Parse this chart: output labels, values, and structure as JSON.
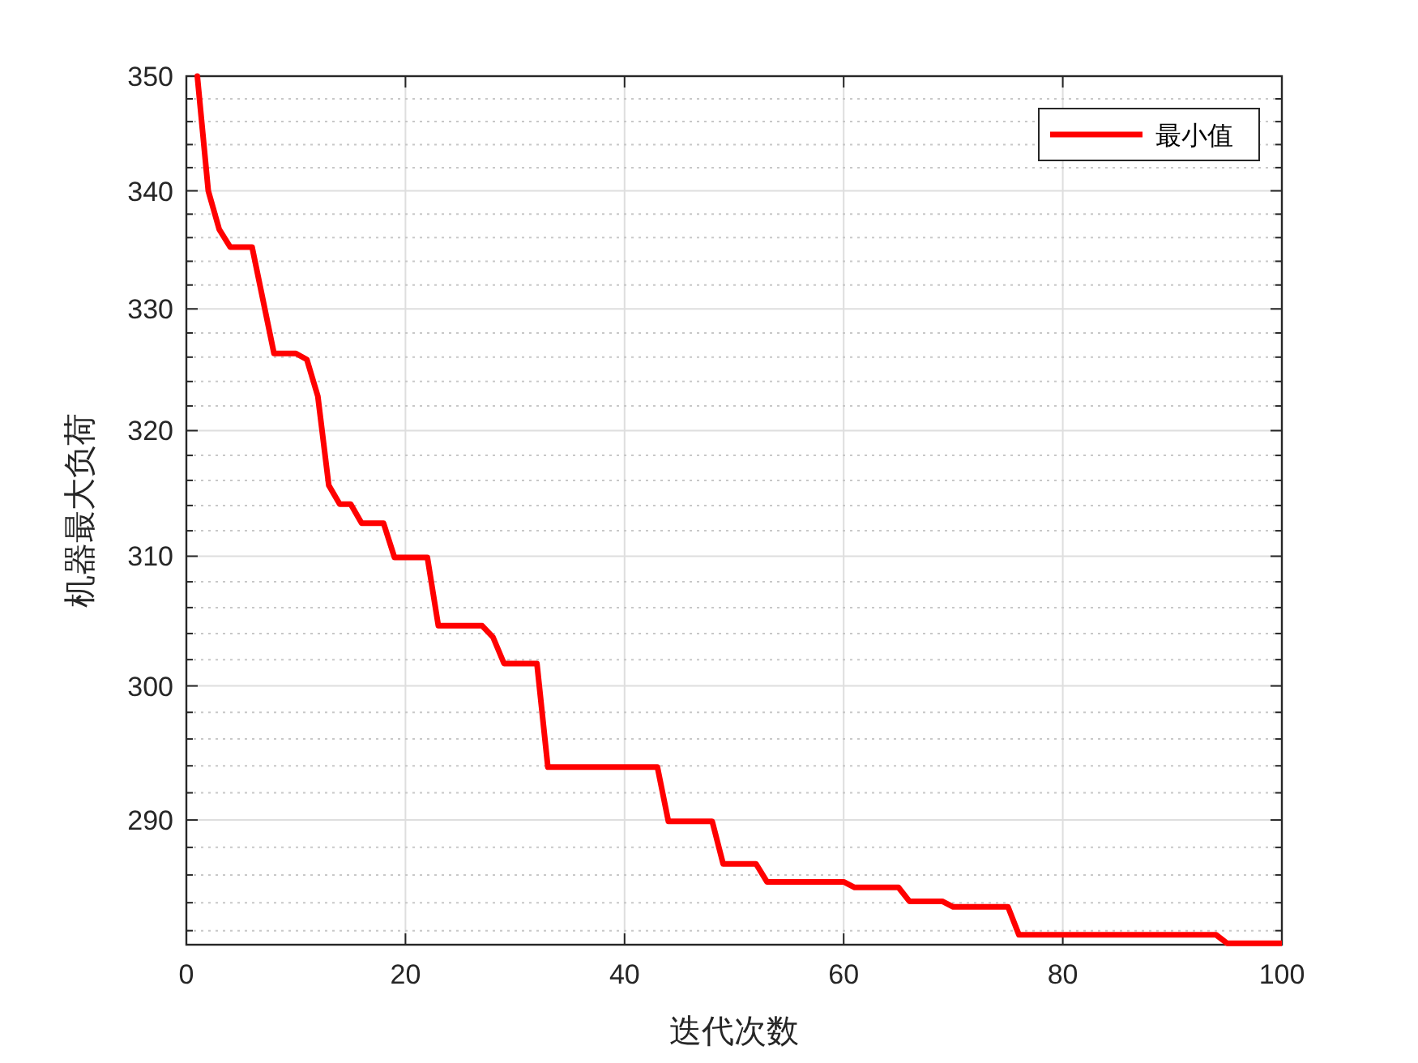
{
  "chart_data": {
    "type": "line",
    "xlabel": "迭代次数",
    "ylabel": "机器最大负荷",
    "log": true,
    "grid": true,
    "legend": "top right",
    "line_style": "solid",
    "xlim": [
      0,
      100
    ],
    "xticks": [
      0,
      20,
      40,
      60,
      80,
      100
    ],
    "ylim": [
      281,
      350
    ],
    "yticks": [
      {
        "value": 282,
        "label": null
      },
      {
        "value": 284,
        "label": null
      },
      {
        "value": 286,
        "label": null
      },
      {
        "value": 288,
        "label": null
      },
      290,
      {
        "value": 292,
        "label": null
      },
      {
        "value": 294,
        "label": null
      },
      {
        "value": 296,
        "label": null
      },
      {
        "value": 298,
        "label": null
      },
      300,
      {
        "value": 302,
        "label": null
      },
      {
        "value": 304,
        "label": null
      },
      {
        "value": 306,
        "label": null
      },
      {
        "value": 308,
        "label": null
      },
      310,
      {
        "value": 312,
        "label": null
      },
      {
        "value": 314,
        "label": null
      },
      {
        "value": 316,
        "label": null
      },
      {
        "value": 318,
        "label": null
      },
      320,
      {
        "value": 322,
        "label": null
      },
      {
        "value": 324,
        "label": null
      },
      {
        "value": 326,
        "label": null
      },
      {
        "value": 328,
        "label": null
      },
      330,
      {
        "value": 332,
        "label": null
      },
      {
        "value": 334,
        "label": null
      },
      {
        "value": 336,
        "label": null
      },
      {
        "value": 338,
        "label": null
      },
      340,
      {
        "value": 342,
        "label": null
      },
      {
        "value": 344,
        "label": null
      },
      {
        "value": 346,
        "label": null
      },
      {
        "value": 348,
        "label": null
      },
      350
    ],
    "series": [
      {
        "name": "最小值",
        "color": "#ff0000",
        "x": [
          1,
          2,
          3,
          4,
          6,
          8,
          10,
          11,
          12,
          13,
          14,
          15,
          16,
          18,
          19,
          22,
          23,
          27,
          28,
          29,
          32,
          33,
          43,
          44,
          48,
          49,
          52,
          53,
          60,
          61,
          65,
          66,
          69,
          70,
          75,
          76,
          94,
          95,
          100
        ],
        "values": [
          350,
          340,
          336.7,
          335.2,
          335.2,
          326.3,
          326.3,
          325.8,
          322.8,
          315.6,
          314.1,
          314.1,
          312.6,
          312.6,
          309.9,
          309.9,
          304.6,
          304.6,
          303.7,
          301.7,
          301.7,
          293.9,
          293.9,
          289.9,
          289.9,
          286.8,
          286.8,
          285.5,
          285.5,
          285.1,
          285.1,
          284.1,
          284.1,
          283.7,
          283.7,
          281.7,
          281.7,
          281.1,
          281.1
        ]
      }
    ]
  }
}
